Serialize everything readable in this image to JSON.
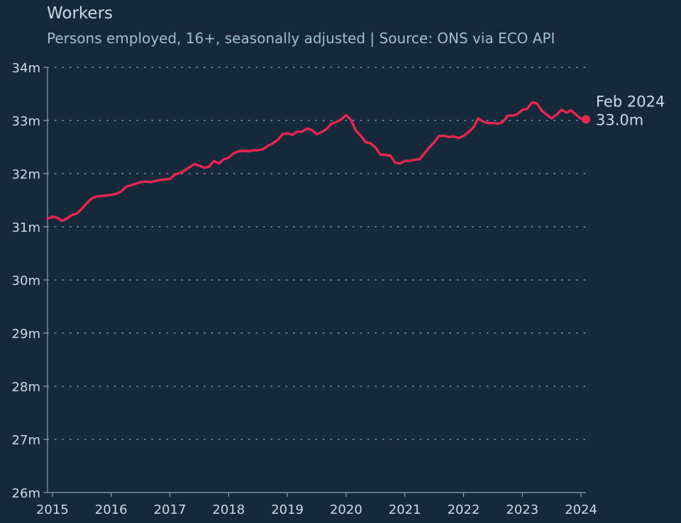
{
  "chart_data": {
    "type": "line",
    "title": "Workers",
    "subtitle": "Persons employed, 16+, seasonally adjusted | Source: ONS via ECO API",
    "xlabel": "",
    "ylabel": "",
    "y_unit_suffix": "m",
    "ylim": [
      26,
      34
    ],
    "y_ticks": [
      26,
      27,
      28,
      29,
      30,
      31,
      32,
      33,
      34
    ],
    "y_tick_labels": [
      "26m",
      "27m",
      "28m",
      "29m",
      "30m",
      "31m",
      "32m",
      "33m",
      "34m"
    ],
    "xlim": [
      "2014-12",
      "2024-02"
    ],
    "x_ticks": [
      "2015-01",
      "2016-01",
      "2017-01",
      "2018-01",
      "2019-01",
      "2020-01",
      "2021-01",
      "2022-01",
      "2023-01",
      "2024-01"
    ],
    "x_tick_labels": [
      "2015",
      "2016",
      "2017",
      "2018",
      "2019",
      "2020",
      "2021",
      "2022",
      "2023",
      "2024"
    ],
    "grid": "horizontal-dotted",
    "series": [
      {
        "color": "#e8264f",
        "x": [
          "2014-12",
          "2015-01",
          "2015-02",
          "2015-03",
          "2015-04",
          "2015-05",
          "2015-06",
          "2015-07",
          "2015-08",
          "2015-09",
          "2015-10",
          "2015-11",
          "2015-12",
          "2016-01",
          "2016-02",
          "2016-03",
          "2016-04",
          "2016-05",
          "2016-06",
          "2016-07",
          "2016-08",
          "2016-09",
          "2016-10",
          "2016-11",
          "2016-12",
          "2017-01",
          "2017-02",
          "2017-03",
          "2017-04",
          "2017-05",
          "2017-06",
          "2017-07",
          "2017-08",
          "2017-09",
          "2017-10",
          "2017-11",
          "2017-12",
          "2018-01",
          "2018-02",
          "2018-03",
          "2018-04",
          "2018-05",
          "2018-06",
          "2018-07",
          "2018-08",
          "2018-09",
          "2018-10",
          "2018-11",
          "2018-12",
          "2019-01",
          "2019-02",
          "2019-03",
          "2019-04",
          "2019-05",
          "2019-06",
          "2019-07",
          "2019-08",
          "2019-09",
          "2019-10",
          "2019-11",
          "2019-12",
          "2020-01",
          "2020-02",
          "2020-03",
          "2020-04",
          "2020-05",
          "2020-06",
          "2020-07",
          "2020-08",
          "2020-09",
          "2020-10",
          "2020-11",
          "2020-12",
          "2021-01",
          "2021-02",
          "2021-03",
          "2021-04",
          "2021-05",
          "2021-06",
          "2021-07",
          "2021-08",
          "2021-09",
          "2021-10",
          "2021-11",
          "2021-12",
          "2022-01",
          "2022-02",
          "2022-03",
          "2022-04",
          "2022-05",
          "2022-06",
          "2022-07",
          "2022-08",
          "2022-09",
          "2022-10",
          "2022-11",
          "2022-12",
          "2023-01",
          "2023-02",
          "2023-03",
          "2023-04",
          "2023-05",
          "2023-06",
          "2023-07",
          "2023-08",
          "2023-09",
          "2023-10",
          "2023-11",
          "2023-12",
          "2024-01",
          "2024-02"
        ],
        "values": [
          31.15,
          31.19,
          31.17,
          31.11,
          31.16,
          31.22,
          31.25,
          31.34,
          31.44,
          31.53,
          31.57,
          31.58,
          31.59,
          31.6,
          31.62,
          31.66,
          31.75,
          31.78,
          31.81,
          31.84,
          31.85,
          31.84,
          31.86,
          31.88,
          31.89,
          31.9,
          31.98,
          32.01,
          32.06,
          32.12,
          32.18,
          32.15,
          32.11,
          32.13,
          32.24,
          32.19,
          32.27,
          32.3,
          32.38,
          32.42,
          32.43,
          32.42,
          32.44,
          32.44,
          32.46,
          32.52,
          32.57,
          32.63,
          32.74,
          32.76,
          32.73,
          32.79,
          32.79,
          32.85,
          32.82,
          32.74,
          32.78,
          32.84,
          32.94,
          32.97,
          33.02,
          33.1,
          33.01,
          32.81,
          32.71,
          32.59,
          32.57,
          32.49,
          32.36,
          32.35,
          32.34,
          32.21,
          32.19,
          32.24,
          32.24,
          32.26,
          32.27,
          32.38,
          32.49,
          32.59,
          32.71,
          32.71,
          32.69,
          32.7,
          32.67,
          32.71,
          32.78,
          32.87,
          33.04,
          32.98,
          32.95,
          32.95,
          32.94,
          32.97,
          33.09,
          33.09,
          33.12,
          33.2,
          33.22,
          33.34,
          33.32,
          33.18,
          33.11,
          33.04,
          33.11,
          33.2,
          33.15,
          33.19,
          33.11,
          33.03,
          33.02
        ]
      }
    ],
    "annotation": {
      "date_label": "Feb 2024",
      "value_label": "33.0m"
    }
  }
}
